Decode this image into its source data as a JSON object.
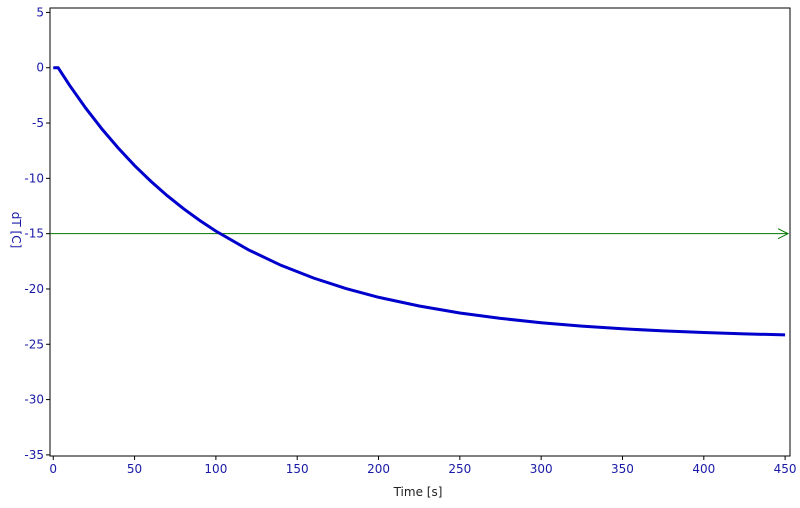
{
  "chart_data": {
    "type": "line",
    "xlabel": "Time [s]",
    "ylabel": "dT [C]",
    "x": [
      0,
      3,
      10,
      20,
      30,
      40,
      50,
      60,
      70,
      80,
      90,
      100,
      120,
      140,
      160,
      180,
      200,
      225,
      250,
      275,
      300,
      325,
      350,
      375,
      400,
      425,
      450
    ],
    "series": [
      {
        "color": "#0000cc",
        "values": [
          0,
          0,
          -1.58,
          -3.66,
          -5.55,
          -7.27,
          -8.84,
          -10.26,
          -11.56,
          -12.73,
          -13.8,
          -14.77,
          -16.46,
          -17.86,
          -19.01,
          -19.96,
          -20.75,
          -21.54,
          -22.17,
          -22.66,
          -23.05,
          -23.36,
          -23.6,
          -23.79,
          -23.94,
          -24.06,
          -24.15
        ]
      }
    ],
    "hline": {
      "value": -15,
      "color": "#007700"
    },
    "xlim": [
      -2,
      453
    ],
    "ylim": [
      -35.1,
      5.4
    ],
    "xticks": [
      0,
      50,
      100,
      150,
      200,
      250,
      300,
      350,
      400,
      450
    ],
    "yticks": [
      5,
      0,
      -5,
      -10,
      -15,
      -20,
      -25,
      -30,
      -35
    ]
  }
}
